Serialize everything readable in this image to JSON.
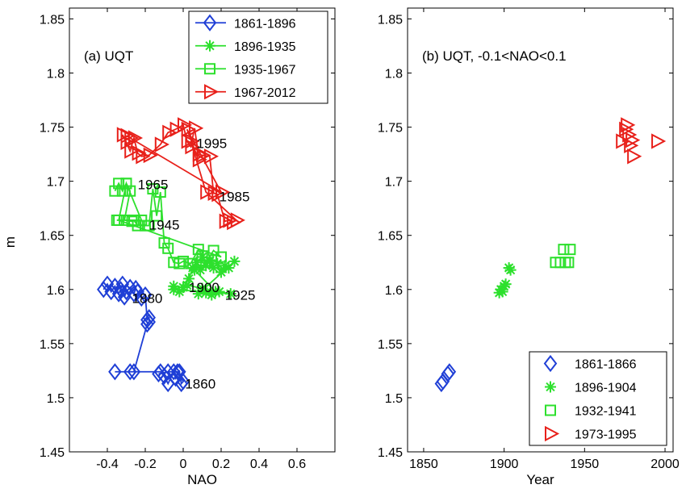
{
  "ylabel": "m",
  "chart_data": [
    {
      "type": "line",
      "title": "(a) UQT",
      "xlabel": "NAO",
      "ylabel": "m",
      "xlim": [
        -0.6,
        0.8
      ],
      "ylim": [
        1.45,
        1.86
      ],
      "xticks": [
        -0.4,
        -0.2,
        0,
        0.2,
        0.4,
        0.6
      ],
      "xtick_labels": [
        "-0.4",
        "-0.2",
        "0",
        "0.2",
        "0.4",
        "0.6"
      ],
      "yticks": [
        1.45,
        1.5,
        1.55,
        1.6,
        1.65,
        1.7,
        1.75,
        1.8,
        1.85
      ],
      "ytick_labels": [
        "1.45",
        "1.5",
        "1.55",
        "1.6",
        "1.65",
        "1.7",
        "1.75",
        "1.8",
        "1.85"
      ],
      "legend_position": "top-right",
      "series": [
        {
          "name": "1861-1896",
          "color": "#1f3fd6",
          "marker": "diamond",
          "x": [
            -0.42,
            -0.4,
            -0.38,
            -0.36,
            -0.34,
            -0.33,
            -0.32,
            -0.31,
            -0.3,
            -0.28,
            -0.26,
            -0.25,
            -0.24,
            -0.22,
            -0.2,
            -0.19,
            -0.18,
            -0.18,
            -0.19,
            -0.26,
            -0.36,
            -0.28,
            -0.12,
            -0.1,
            -0.08,
            -0.05,
            -0.04,
            -0.02,
            -0.01,
            0.0,
            -0.03,
            -0.08,
            -0.13
          ],
          "y": [
            1.6,
            1.605,
            1.598,
            1.603,
            1.596,
            1.6,
            1.605,
            1.593,
            1.598,
            1.602,
            1.596,
            1.601,
            1.598,
            1.592,
            1.595,
            1.572,
            1.574,
            1.57,
            1.568,
            1.524,
            1.524,
            1.524,
            1.524,
            1.52,
            1.513,
            1.524,
            1.518,
            1.524,
            1.513,
            1.515,
            1.524,
            1.524,
            1.522
          ]
        },
        {
          "name": "1896-1935",
          "color": "#2de02d",
          "marker": "star",
          "x": [
            -0.05,
            -0.02,
            0.0,
            0.03,
            0.05,
            0.07,
            0.09,
            0.1,
            0.12,
            0.14,
            0.16,
            0.18,
            0.2,
            0.22,
            0.24,
            0.27,
            0.08,
            0.12,
            0.15,
            0.19,
            0.25,
            -0.05,
            0.02,
            0.1,
            0.17,
            0.06,
            0.14
          ],
          "y": [
            1.603,
            1.598,
            1.602,
            1.61,
            1.62,
            1.625,
            1.618,
            1.63,
            1.622,
            1.627,
            1.62,
            1.624,
            1.616,
            1.622,
            1.62,
            1.626,
            1.596,
            1.597,
            1.595,
            1.598,
            1.596,
            1.6,
            1.604,
            1.601,
            1.598,
            1.618,
            1.626
          ]
        },
        {
          "name": "1935-1967",
          "color": "#2de02d",
          "marker": "square",
          "x": [
            -0.36,
            -0.34,
            -0.32,
            -0.3,
            -0.28,
            -0.31,
            -0.27,
            -0.26,
            -0.24,
            -0.2,
            -0.18,
            -0.16,
            -0.14,
            -0.12,
            -0.1,
            -0.08,
            -0.05,
            -0.02,
            0.0,
            0.04,
            0.08,
            0.1,
            0.12,
            0.16,
            0.2,
            -0.34,
            -0.3,
            -0.22,
            -0.35
          ],
          "y": [
            1.691,
            1.698,
            1.691,
            1.698,
            1.691,
            1.664,
            1.663,
            1.664,
            1.659,
            1.659,
            1.659,
            1.693,
            1.668,
            1.69,
            1.643,
            1.638,
            1.625,
            1.624,
            1.626,
            1.624,
            1.637,
            1.631,
            1.625,
            1.636,
            1.63,
            1.664,
            1.698,
            1.664,
            1.664
          ]
        },
        {
          "name": "1967-2012",
          "color": "#e8201a",
          "marker": "triangle-right",
          "x": [
            -0.32,
            -0.3,
            -0.28,
            -0.26,
            -0.24,
            -0.22,
            -0.18,
            -0.12,
            -0.08,
            -0.04,
            0.0,
            0.02,
            0.04,
            0.06,
            0.08,
            0.1,
            0.14,
            0.16,
            0.18,
            0.22,
            0.24,
            0.26,
            0.28,
            0.12,
            0.04,
            0.08,
            0.02,
            0.2,
            -0.28,
            -0.3
          ],
          "y": [
            1.743,
            1.736,
            1.728,
            1.74,
            1.726,
            1.723,
            1.724,
            1.734,
            1.745,
            1.748,
            1.752,
            1.737,
            1.732,
            1.749,
            1.725,
            1.724,
            1.723,
            1.689,
            1.688,
            1.663,
            1.664,
            1.662,
            1.664,
            1.69,
            1.737,
            1.72,
            1.748,
            1.69,
            1.74,
            1.742
          ]
        }
      ],
      "annotations": [
        {
          "text": "1995",
          "x": 0.07,
          "y": 1.735
        },
        {
          "text": "1965",
          "x": -0.24,
          "y": 1.697
        },
        {
          "text": "1985",
          "x": 0.19,
          "y": 1.686
        },
        {
          "text": "1945",
          "x": -0.18,
          "y": 1.66
        },
        {
          "text": "1900",
          "x": 0.03,
          "y": 1.602
        },
        {
          "text": "1925",
          "x": 0.22,
          "y": 1.595
        },
        {
          "text": "1880",
          "x": -0.27,
          "y": 1.592
        },
        {
          "text": "1860",
          "x": 0.01,
          "y": 1.513
        }
      ]
    },
    {
      "type": "scatter",
      "title": "(b) UQT, -0.1<NAO<0.1",
      "xlabel": "Year",
      "xlim": [
        1840,
        2005
      ],
      "ylim": [
        1.45,
        1.86
      ],
      "xticks": [
        1850,
        1900,
        1950,
        2000
      ],
      "xtick_labels": [
        "1850",
        "1900",
        "1950",
        "2000"
      ],
      "yticks": [
        1.45,
        1.5,
        1.55,
        1.6,
        1.65,
        1.7,
        1.75,
        1.8,
        1.85
      ],
      "ytick_labels": [
        "1.45",
        "1.5",
        "1.55",
        "1.6",
        "1.65",
        "1.7",
        "1.75",
        "1.8",
        "1.85"
      ],
      "legend_position": "bottom-right",
      "series": [
        {
          "name": "1861-1866",
          "color": "#1f3fd6",
          "marker": "diamond",
          "x": [
            1861,
            1862,
            1865,
            1866
          ],
          "y": [
            1.513,
            1.515,
            1.522,
            1.524
          ]
        },
        {
          "name": "1896-1904",
          "color": "#2de02d",
          "marker": "star",
          "x": [
            1897,
            1898,
            1899,
            1900,
            1901,
            1903,
            1904
          ],
          "y": [
            1.597,
            1.6,
            1.598,
            1.603,
            1.605,
            1.62,
            1.618
          ]
        },
        {
          "name": "1932-1941",
          "color": "#2de02d",
          "marker": "square",
          "x": [
            1932,
            1935,
            1937,
            1938,
            1940,
            1941
          ],
          "y": [
            1.625,
            1.625,
            1.637,
            1.625,
            1.625,
            1.637
          ]
        },
        {
          "name": "1973-1995",
          "color": "#e8201a",
          "marker": "triangle-right",
          "x": [
            1973,
            1975,
            1976,
            1977,
            1978,
            1979,
            1980,
            1995
          ],
          "y": [
            1.737,
            1.748,
            1.752,
            1.743,
            1.733,
            1.738,
            1.723,
            1.737
          ]
        }
      ]
    }
  ]
}
